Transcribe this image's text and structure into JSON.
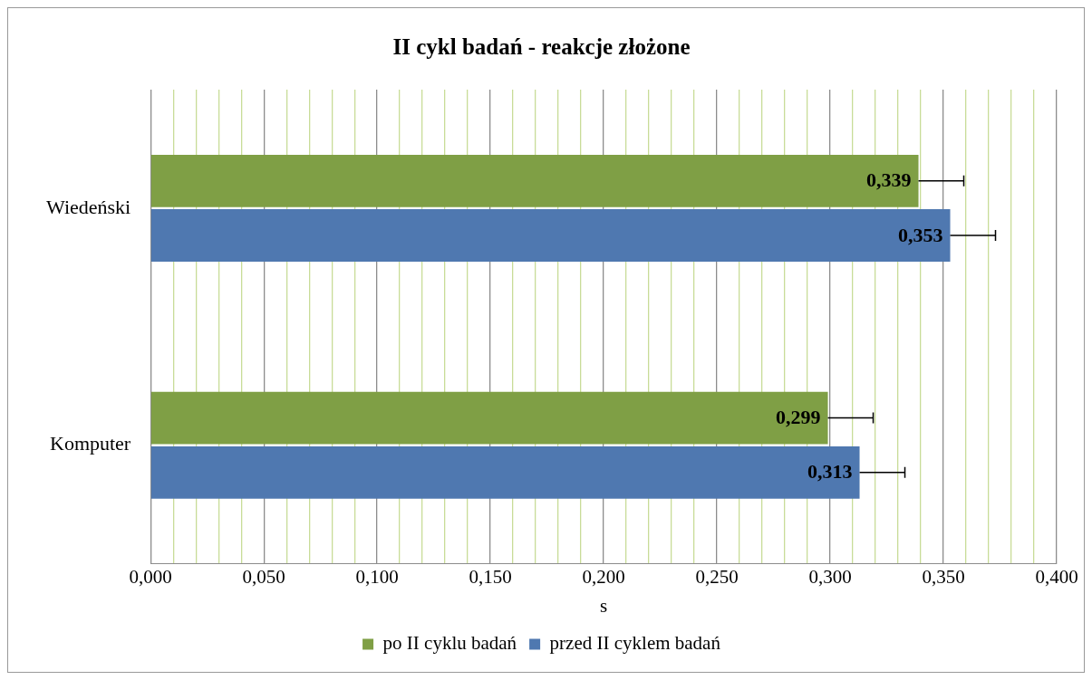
{
  "chart_data": {
    "type": "bar",
    "orientation": "horizontal",
    "title": "II cykl badań - reakcje złożone",
    "xlabel": "s",
    "categories": [
      "Wiedeński",
      "Komputer"
    ],
    "series": [
      {
        "name": "po II cyklu badań",
        "color": "#7f9f45",
        "values": [
          0.339,
          0.299
        ],
        "errors": [
          [
            0.339,
            0.359
          ],
          [
            0.299,
            0.319
          ]
        ],
        "value_labels": [
          "0,339",
          "0,299"
        ]
      },
      {
        "name": "przed II cyklem badań",
        "color": "#4f78b0",
        "values": [
          0.353,
          0.313
        ],
        "errors": [
          [
            0.353,
            0.373
          ],
          [
            0.313,
            0.333
          ]
        ],
        "value_labels": [
          "0,353",
          "0,313"
        ]
      }
    ],
    "xlim": [
      0,
      0.4
    ],
    "xticks": [
      {
        "value": 0,
        "label": "0,000"
      },
      {
        "value": 0.01,
        "label": null
      },
      {
        "value": 0.02,
        "label": null
      },
      {
        "value": 0.03,
        "label": null
      },
      {
        "value": 0.04,
        "label": null
      },
      {
        "value": 0.05,
        "label": "0,050"
      },
      {
        "value": 0.06,
        "label": null
      },
      {
        "value": 0.07,
        "label": null
      },
      {
        "value": 0.08,
        "label": null
      },
      {
        "value": 0.09,
        "label": null
      },
      {
        "value": 0.1,
        "label": "0,100"
      },
      {
        "value": 0.11,
        "label": null
      },
      {
        "value": 0.12,
        "label": null
      },
      {
        "value": 0.13,
        "label": null
      },
      {
        "value": 0.14,
        "label": null
      },
      {
        "value": 0.15,
        "label": "0,150"
      },
      {
        "value": 0.16,
        "label": null
      },
      {
        "value": 0.17,
        "label": null
      },
      {
        "value": 0.18,
        "label": null
      },
      {
        "value": 0.19,
        "label": null
      },
      {
        "value": 0.2,
        "label": "0,200"
      },
      {
        "value": 0.21,
        "label": null
      },
      {
        "value": 0.22,
        "label": null
      },
      {
        "value": 0.23,
        "label": null
      },
      {
        "value": 0.24,
        "label": null
      },
      {
        "value": 0.25,
        "label": "0,250"
      },
      {
        "value": 0.26,
        "label": null
      },
      {
        "value": 0.27,
        "label": null
      },
      {
        "value": 0.28,
        "label": null
      },
      {
        "value": 0.29,
        "label": null
      },
      {
        "value": 0.3,
        "label": "0,300"
      },
      {
        "value": 0.31,
        "label": null
      },
      {
        "value": 0.32,
        "label": null
      },
      {
        "value": 0.33,
        "label": null
      },
      {
        "value": 0.34,
        "label": null
      },
      {
        "value": 0.35,
        "label": "0,350"
      },
      {
        "value": 0.36,
        "label": null
      },
      {
        "value": 0.37,
        "label": null
      },
      {
        "value": 0.38,
        "label": null
      },
      {
        "value": 0.39,
        "label": null
      },
      {
        "value": 0.4,
        "label": "0,400"
      }
    ],
    "grid": "x",
    "legend": "bottom"
  }
}
